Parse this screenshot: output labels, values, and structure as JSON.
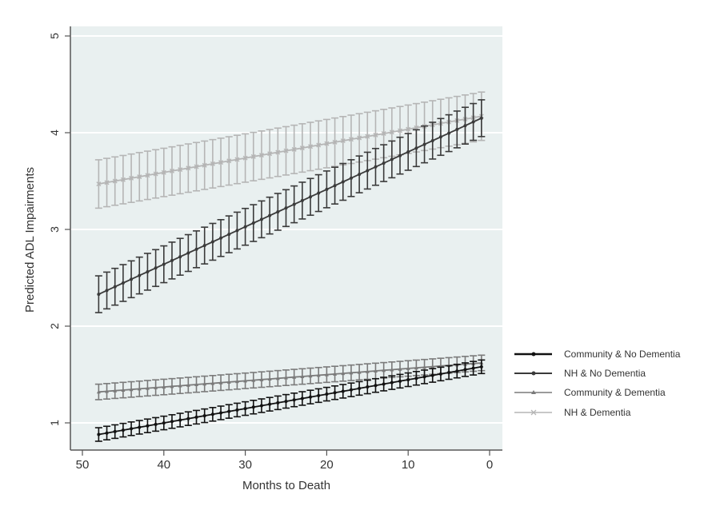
{
  "chart_data": {
    "type": "line",
    "title": "",
    "xlabel": "Months to Death",
    "ylabel": "Predicted ADL Impairments",
    "xlim": [
      50,
      0
    ],
    "ylim": [
      0.7,
      5.1
    ],
    "x_ticks": [
      50,
      40,
      30,
      20,
      10,
      0
    ],
    "y_ticks": [
      1,
      2,
      3,
      4,
      5
    ],
    "grid": "horizontal",
    "legend_position": "right",
    "x": [
      48,
      47,
      46,
      45,
      44,
      43,
      42,
      41,
      40,
      39,
      38,
      37,
      36,
      35,
      34,
      33,
      32,
      31,
      30,
      29,
      28,
      27,
      26,
      25,
      24,
      23,
      22,
      21,
      20,
      19,
      18,
      17,
      16,
      15,
      14,
      13,
      12,
      11,
      10,
      9,
      8,
      7,
      6,
      5,
      4,
      3,
      2,
      1
    ],
    "series": [
      {
        "name": "Community & No Dementia",
        "color": "#111111",
        "marker": "dot",
        "start": 0.88,
        "end": 1.58,
        "ci_half": 0.07
      },
      {
        "name": "NH & No Dementia",
        "color": "#3a3a3a",
        "marker": "dot",
        "start": 2.33,
        "end": 4.15,
        "ci_half": 0.19
      },
      {
        "name": "Community & Dementia",
        "color": "#7a7a7a",
        "marker": "triangle",
        "start": 1.32,
        "end": 1.62,
        "ci_half": 0.08
      },
      {
        "name": "NH & Dementia",
        "color": "#b5b5b5",
        "marker": "x",
        "start": 3.47,
        "end": 4.17,
        "ci_half": 0.25
      }
    ]
  },
  "legend": {
    "items": [
      {
        "label": "Community & No Dementia"
      },
      {
        "label": "NH & No Dementia"
      },
      {
        "label": "Community & Dementia"
      },
      {
        "label": "NH & Dementia"
      }
    ]
  },
  "axes": {
    "x_label": "Months to Death",
    "y_label": "Predicted ADL Impairments",
    "x_tick_labels": [
      "50",
      "40",
      "30",
      "20",
      "10",
      "0"
    ],
    "y_tick_labels": [
      "1",
      "2",
      "3",
      "4",
      "5"
    ]
  },
  "colors": {
    "plot_background": "#e9f0f0",
    "gridline": "#ffffff",
    "axis": "#555555"
  }
}
